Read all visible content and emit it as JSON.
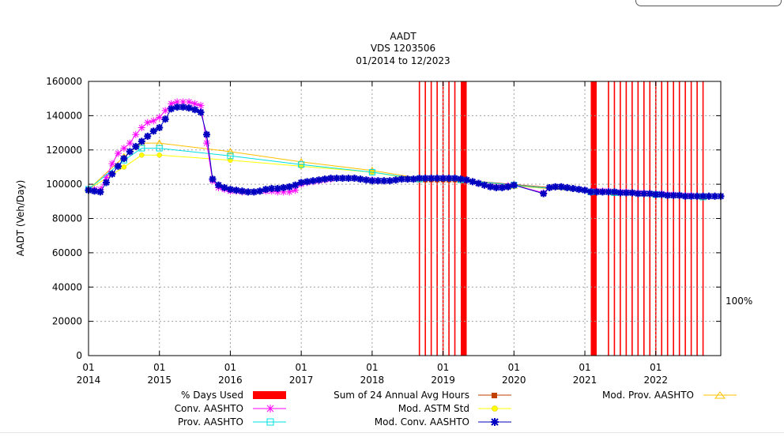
{
  "chart_data": {
    "type": "line",
    "title": "AADT",
    "subtitle_lines": [
      "VDS 1203506",
      "01/2014 to 12/2023"
    ],
    "ylabel": "AADT (Veh/Day)",
    "xlabel": "",
    "ylim": [
      0,
      160000
    ],
    "xlim": [
      "2014-01",
      "2022-12"
    ],
    "y_ticks": [
      "0",
      "20000",
      "40000",
      "60000",
      "80000",
      "100000",
      "120000",
      "140000",
      "160000"
    ],
    "x_ticks": [
      {
        "month": "01",
        "year": "2014"
      },
      {
        "month": "01",
        "year": "2015"
      },
      {
        "month": "01",
        "year": "2016"
      },
      {
        "month": "01",
        "year": "2017"
      },
      {
        "month": "01",
        "year": "2018"
      },
      {
        "month": "01",
        "year": "2019"
      },
      {
        "month": "01",
        "year": "2020"
      },
      {
        "month": "01",
        "year": "2021"
      },
      {
        "month": "01",
        "year": "2022"
      }
    ],
    "grid": true,
    "right_label": "100%",
    "days_used_bars": {
      "name": "% Days Used",
      "color": "#ff0000",
      "thin_bar_dates": [
        "2018-09",
        "2018-10",
        "2018-11",
        "2018-12",
        "2019-01",
        "2019-02",
        "2019-03",
        "2021-05",
        "2021-06",
        "2021-07",
        "2021-08",
        "2021-09",
        "2021-10",
        "2021-11",
        "2021-12",
        "2022-01",
        "2022-02",
        "2022-03",
        "2022-04",
        "2022-05",
        "2022-06",
        "2022-07",
        "2022-08",
        "2022-09"
      ],
      "wide_bars": [
        [
          "2019-04",
          "2019-05"
        ],
        [
          "2021-02",
          "2021-03"
        ]
      ]
    },
    "series": [
      {
        "name": "Sum of 24 Annual Avg Hours",
        "color": "#c04000",
        "marker": "square",
        "x": [
          "2018-09",
          "2018-10",
          "2018-11",
          "2018-12",
          "2019-01",
          "2019-02",
          "2019-03",
          "2019-04",
          "2021-02",
          "2021-03",
          "2021-04",
          "2021-05",
          "2021-06",
          "2021-07",
          "2021-08",
          "2021-09",
          "2021-10",
          "2021-11",
          "2021-12",
          "2022-01",
          "2022-02",
          "2022-03",
          "2022-04",
          "2022-05",
          "2022-06",
          "2022-07",
          "2022-08",
          "2022-09"
        ],
        "y": [
          102500,
          102500,
          102500,
          102500,
          102500,
          102500,
          102500,
          102500,
          96000,
          96000,
          95500,
          95500,
          95500,
          95000,
          95000,
          95000,
          94500,
          94500,
          94500,
          94000,
          94000,
          93500,
          93500,
          93500,
          93000,
          93000,
          93000,
          93000
        ]
      },
      {
        "name": "Mod. ASTM Std",
        "color": "#ffff00",
        "marker": "circle",
        "x": [
          "2014-01",
          "2014-07",
          "2014-10",
          "2015-01",
          "2016-01",
          "2017-01",
          "2018-01",
          "2018-09",
          "2019-04",
          "2020-01",
          "2021-02",
          "2021-06",
          "2022-01",
          "2022-09"
        ],
        "y": [
          97000,
          110000,
          117000,
          117000,
          114000,
          110500,
          107000,
          102500,
          102000,
          99500,
          95500,
          95000,
          93500,
          92500
        ]
      },
      {
        "name": "Mod. Prov. AASHTO",
        "color": "#ffc000",
        "marker": "triangle",
        "x": [
          "2014-01",
          "2014-07",
          "2014-10",
          "2015-01",
          "2016-01",
          "2017-01",
          "2018-01",
          "2018-09",
          "2019-04",
          "2020-01",
          "2021-02",
          "2021-06",
          "2022-01",
          "2022-09"
        ],
        "y": [
          97000,
          116000,
          124000,
          124000,
          119000,
          113000,
          108000,
          103500,
          103000,
          99000,
          95500,
          95000,
          94000,
          92500
        ]
      },
      {
        "name": "Conv. AASHTO",
        "color": "#ff00ff",
        "marker": "star",
        "x": [
          "2014-01",
          "2014-02",
          "2014-03",
          "2014-04",
          "2014-05",
          "2014-06",
          "2014-07",
          "2014-08",
          "2014-09",
          "2014-10",
          "2014-11",
          "2014-12",
          "2015-01",
          "2015-02",
          "2015-03",
          "2015-04",
          "2015-05",
          "2015-06",
          "2015-07",
          "2015-08",
          "2015-09",
          "2015-10",
          "2015-11",
          "2015-12",
          "2016-01",
          "2016-02",
          "2016-03",
          "2016-04",
          "2016-05",
          "2016-06",
          "2016-07",
          "2016-08",
          "2016-09",
          "2016-10",
          "2016-11",
          "2016-12",
          "2017-01",
          "2017-02",
          "2017-03",
          "2017-04",
          "2017-05",
          "2017-06",
          "2017-07",
          "2017-08",
          "2017-09",
          "2017-10",
          "2017-11",
          "2017-12",
          "2018-01",
          "2018-02",
          "2018-03",
          "2018-04",
          "2018-05",
          "2018-06",
          "2018-07",
          "2018-08",
          "2018-09",
          "2018-10",
          "2018-11",
          "2018-12",
          "2019-01",
          "2019-02",
          "2019-03",
          "2019-04",
          "2019-05",
          "2019-06",
          "2019-07",
          "2019-08",
          "2019-09",
          "2019-10",
          "2019-11",
          "2019-12",
          "2020-01",
          "2020-06",
          "2020-07",
          "2020-08",
          "2020-09",
          "2020-10",
          "2020-11",
          "2020-12",
          "2021-01",
          "2021-02",
          "2021-03",
          "2021-04",
          "2021-05",
          "2021-06",
          "2021-07",
          "2021-08",
          "2021-09",
          "2021-10",
          "2021-11",
          "2021-12",
          "2022-01",
          "2022-02",
          "2022-03",
          "2022-04",
          "2022-05",
          "2022-06",
          "2022-07",
          "2022-08",
          "2022-09",
          "2022-10",
          "2022-11",
          "2022-12"
        ],
        "y": [
          97000,
          97000,
          97000,
          104000,
          112000,
          118000,
          121000,
          124000,
          129000,
          133000,
          136000,
          137000,
          139000,
          143000,
          147000,
          148000,
          148000,
          148000,
          147000,
          146000,
          124000,
          102000,
          98000,
          97000,
          96000,
          96000,
          95500,
          95500,
          95500,
          96000,
          96000,
          96000,
          95500,
          95500,
          95500,
          96500,
          100000,
          101000,
          101500,
          102000,
          102500,
          103000,
          103500,
          103500,
          103500,
          103500,
          103000,
          102500,
          102500,
          102000,
          102000,
          102000,
          102500,
          103000,
          103000,
          103000,
          103500,
          103500,
          103500,
          103500,
          103500,
          103500,
          103500,
          103000,
          102500,
          101500,
          100500,
          99500,
          99000,
          98500,
          98500,
          99000,
          99500,
          95000,
          98000,
          98500,
          98500,
          98000,
          97500,
          97000,
          96500,
          96000,
          96000,
          96000,
          96000,
          95500,
          95500,
          95500,
          95000,
          95000,
          95000,
          94500,
          94500,
          94500,
          94000,
          94000,
          93500,
          93500,
          93500,
          93000,
          93000,
          93000,
          93000,
          93000
        ]
      },
      {
        "name": "Prov. AASHTO",
        "color": "#00e0e0",
        "marker": "square-open",
        "x": [
          "2014-01",
          "2014-07",
          "2014-10",
          "2015-01",
          "2016-01",
          "2017-01",
          "2018-01",
          "2018-09",
          "2019-04",
          "2020-01",
          "2021-02",
          "2021-06",
          "2022-01",
          "2022-09"
        ],
        "y": [
          97000,
          114000,
          121000,
          121000,
          116500,
          111500,
          107000,
          103000,
          102500,
          99500,
          95500,
          95000,
          94000,
          92500
        ]
      },
      {
        "name": "Mod. Conv. AASHTO",
        "color": "#0000c0",
        "marker": "star-filled",
        "x": [
          "2014-01",
          "2014-02",
          "2014-03",
          "2014-04",
          "2014-05",
          "2014-06",
          "2014-07",
          "2014-08",
          "2014-09",
          "2014-10",
          "2014-11",
          "2014-12",
          "2015-01",
          "2015-02",
          "2015-03",
          "2015-04",
          "2015-05",
          "2015-06",
          "2015-07",
          "2015-08",
          "2015-09",
          "2015-10",
          "2015-11",
          "2015-12",
          "2016-01",
          "2016-02",
          "2016-03",
          "2016-04",
          "2016-05",
          "2016-06",
          "2016-07",
          "2016-08",
          "2016-09",
          "2016-10",
          "2016-11",
          "2016-12",
          "2017-01",
          "2017-02",
          "2017-03",
          "2017-04",
          "2017-05",
          "2017-06",
          "2017-07",
          "2017-08",
          "2017-09",
          "2017-10",
          "2017-11",
          "2017-12",
          "2018-01",
          "2018-02",
          "2018-03",
          "2018-04",
          "2018-05",
          "2018-06",
          "2018-07",
          "2018-08",
          "2018-09",
          "2018-10",
          "2018-11",
          "2018-12",
          "2019-01",
          "2019-02",
          "2019-03",
          "2019-04",
          "2019-05",
          "2019-06",
          "2019-07",
          "2019-08",
          "2019-09",
          "2019-10",
          "2019-11",
          "2019-12",
          "2020-01",
          "2020-06",
          "2020-07",
          "2020-08",
          "2020-09",
          "2020-10",
          "2020-11",
          "2020-12",
          "2021-01",
          "2021-02",
          "2021-03",
          "2021-04",
          "2021-05",
          "2021-06",
          "2021-07",
          "2021-08",
          "2021-09",
          "2021-10",
          "2021-11",
          "2021-12",
          "2022-01",
          "2022-02",
          "2022-03",
          "2022-04",
          "2022-05",
          "2022-06",
          "2022-07",
          "2022-08",
          "2022-09",
          "2022-10",
          "2022-11",
          "2022-12"
        ],
        "y": [
          96500,
          96000,
          95500,
          101000,
          106000,
          110500,
          115000,
          119000,
          122000,
          125000,
          128000,
          131000,
          133000,
          138000,
          144000,
          145000,
          145000,
          144500,
          143500,
          142000,
          129000,
          103000,
          99500,
          98000,
          97000,
          96500,
          96000,
          95500,
          95500,
          96000,
          97000,
          97500,
          97500,
          98000,
          98500,
          99500,
          101000,
          101500,
          102000,
          102500,
          103000,
          103500,
          103500,
          103500,
          103500,
          103500,
          103000,
          102500,
          102000,
          102000,
          102000,
          102000,
          102500,
          103000,
          103000,
          103000,
          103500,
          103500,
          103500,
          103500,
          103500,
          103500,
          103500,
          103000,
          102500,
          101500,
          100500,
          99500,
          98500,
          98000,
          98000,
          98500,
          99500,
          94500,
          98000,
          98500,
          98500,
          98000,
          97500,
          97000,
          96500,
          95500,
          95500,
          95500,
          95500,
          95500,
          95000,
          95000,
          95000,
          94500,
          94500,
          94500,
          94000,
          94000,
          93500,
          93500,
          93500,
          93000,
          93000,
          93000,
          93000,
          93000,
          93000,
          93000
        ]
      }
    ],
    "legend_placement": "bottom"
  }
}
